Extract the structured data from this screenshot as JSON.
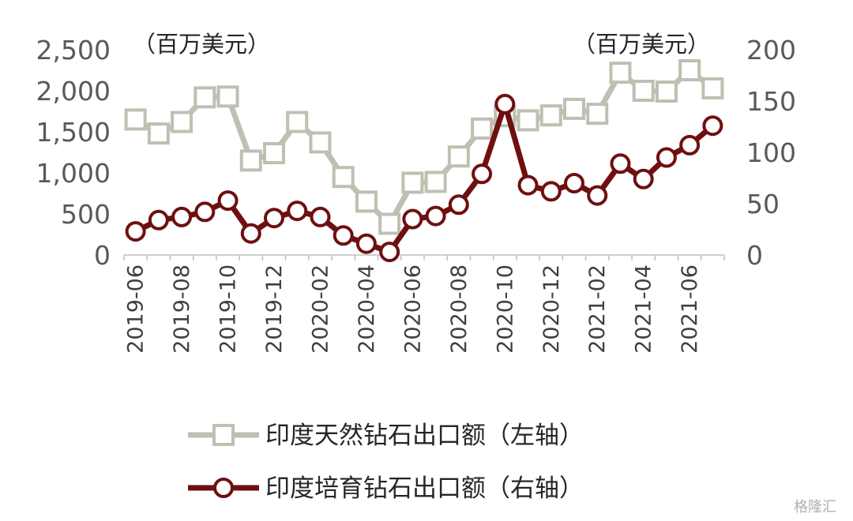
{
  "chart_data": {
    "type": "line",
    "x": [
      "2019-06",
      "2019-07",
      "2019-08",
      "2019-09",
      "2019-10",
      "2019-11",
      "2019-12",
      "2020-01",
      "2020-02",
      "2020-03",
      "2020-04",
      "2020-05",
      "2020-06",
      "2020-07",
      "2020-08",
      "2020-09",
      "2020-10",
      "2020-11",
      "2020-12",
      "2021-01",
      "2021-02",
      "2021-03",
      "2021-04",
      "2021-05",
      "2021-06",
      "2021-07"
    ],
    "xtick_labels": [
      "2019-06",
      "2019-08",
      "2019-10",
      "2019-12",
      "2020-02",
      "2020-04",
      "2020-06",
      "2020-08",
      "2020-10",
      "2020-12",
      "2021-02",
      "2021-04",
      "2021-06"
    ],
    "series": [
      {
        "name": "印度天然钻石出口额（左轴）",
        "axis": "left",
        "color": "#bfbfb2",
        "marker": "square",
        "values": [
          1650,
          1480,
          1620,
          1920,
          1930,
          1150,
          1240,
          1620,
          1370,
          950,
          650,
          380,
          880,
          890,
          1200,
          1540,
          1690,
          1640,
          1700,
          1780,
          1720,
          2220,
          2000,
          1990,
          2250,
          2030
        ]
      },
      {
        "name": "印度培育钻石出口额（右轴）",
        "axis": "right",
        "color": "#6f0f10",
        "marker": "circle",
        "values": [
          23,
          34,
          37,
          42,
          53,
          21,
          36,
          43,
          37,
          19,
          11,
          3,
          35,
          38,
          49,
          79,
          147,
          68,
          62,
          70,
          58,
          89,
          74,
          95,
          107,
          126
        ]
      }
    ],
    "left_axis": {
      "ylim": [
        0,
        2500
      ],
      "ticks": [
        "0",
        "500",
        "1,000",
        "1,500",
        "2,000",
        "2,500"
      ],
      "unit": "（百万美元）"
    },
    "right_axis": {
      "ylim": [
        0,
        200
      ],
      "ticks": [
        "0",
        "50",
        "100",
        "150",
        "200"
      ],
      "unit": "（百万美元）"
    },
    "grid": false,
    "legend_position": "bottom"
  },
  "watermark": "格隆汇"
}
